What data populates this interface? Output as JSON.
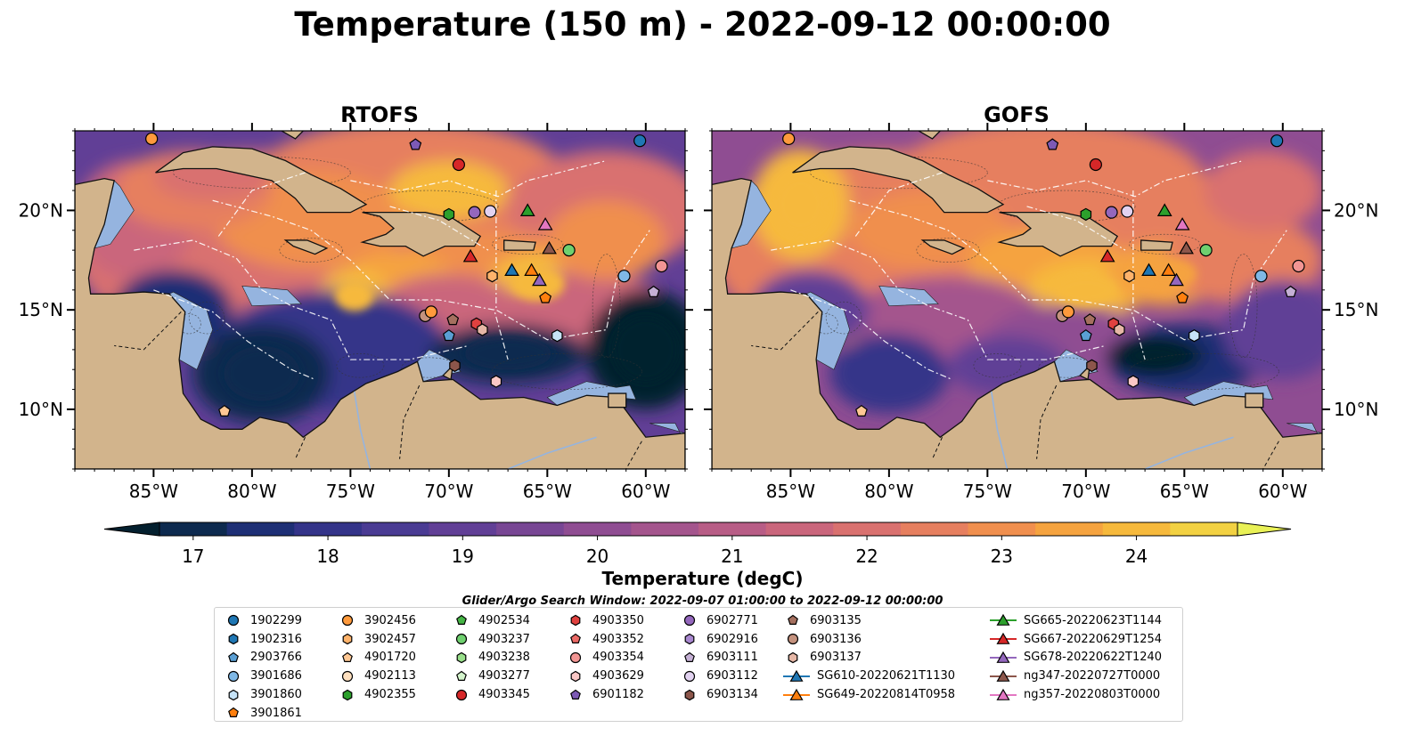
{
  "title": "Temperature (150 m) - 2022-09-12 00:00:00",
  "panels": [
    {
      "title": "RTOFS",
      "variant": "rtofs"
    },
    {
      "title": "GOFS",
      "variant": "gofs"
    }
  ],
  "map": {
    "lon_range": [
      -89,
      -58
    ],
    "lat_range": [
      7,
      24
    ],
    "lon_ticks": [
      -85,
      -80,
      -75,
      -70,
      -65,
      -60
    ],
    "lon_tick_labels": [
      "85°W",
      "80°W",
      "75°W",
      "70°W",
      "65°W",
      "60°W"
    ],
    "lat_ticks": [
      10,
      15,
      20
    ],
    "lat_tick_labels": [
      "10°N",
      "15°N",
      "20°N"
    ],
    "land_color": "#d2b48c",
    "shelf_color": "#95b4df",
    "eez_line_color": "#ffffff"
  },
  "colorbar": {
    "label": "Temperature (degC)",
    "min": 16.75,
    "max": 24.75,
    "step": 0.5,
    "ticks": [
      17,
      18,
      19,
      20,
      21,
      22,
      23,
      24
    ],
    "tick_labels": [
      "17",
      "18",
      "19",
      "20",
      "21",
      "22",
      "23",
      "24"
    ],
    "extend": "both",
    "colors": [
      "#04202f",
      "#0d2a4f",
      "#1e2f75",
      "#343489",
      "#4a3b93",
      "#613f96",
      "#784694",
      "#8f4d92",
      "#a4558d",
      "#b85d86",
      "#ca667c",
      "#d9716f",
      "#e67f5f",
      "#f08f4e",
      "#f5a33f",
      "#f6b93c",
      "#f2d142",
      "#e9f156"
    ]
  },
  "legend": {
    "title": "Glider/Argo Search Window: 2022-09-07 01:00:00 to 2022-09-12 00:00:00",
    "columns": [
      [
        {
          "label": "1902299",
          "marker": "circle",
          "color": "#1f77b4"
        },
        {
          "label": "1902316",
          "marker": "hexagon",
          "color": "#1f77b4"
        },
        {
          "label": "2903766",
          "marker": "pentagon",
          "color": "#5a9fd4"
        },
        {
          "label": "3901686",
          "marker": "circle",
          "color": "#7fb8e6"
        },
        {
          "label": "3901860",
          "marker": "hexagon",
          "color": "#c6e3f7"
        },
        {
          "label": "3901861",
          "marker": "pentagon",
          "color": "#ff7f0e"
        }
      ],
      [
        {
          "label": "3902456",
          "marker": "circle",
          "color": "#ff9a3c"
        },
        {
          "label": "3902457",
          "marker": "hexagon",
          "color": "#ffb36b"
        },
        {
          "label": "4901720",
          "marker": "pentagon",
          "color": "#ffc894"
        },
        {
          "label": "4902113",
          "marker": "circle",
          "color": "#ffe0bf"
        },
        {
          "label": "4902355",
          "marker": "hexagon",
          "color": "#2ca02c"
        }
      ],
      [
        {
          "label": "4902534",
          "marker": "pentagon",
          "color": "#45b545"
        },
        {
          "label": "4903237",
          "marker": "circle",
          "color": "#6fd06f"
        },
        {
          "label": "4903238",
          "marker": "hexagon",
          "color": "#98df8a"
        },
        {
          "label": "4903277",
          "marker": "pentagon",
          "color": "#d4f5cc"
        },
        {
          "label": "4903345",
          "marker": "circle",
          "color": "#d62728"
        }
      ],
      [
        {
          "label": "4903350",
          "marker": "hexagon",
          "color": "#e0413f"
        },
        {
          "label": "4903352",
          "marker": "pentagon",
          "color": "#ec6a66"
        },
        {
          "label": "4903354",
          "marker": "circle",
          "color": "#f29593"
        },
        {
          "label": "4903629",
          "marker": "hexagon",
          "color": "#fbc8c6"
        },
        {
          "label": "6901182",
          "marker": "pentagon",
          "color": "#7d5ab5"
        }
      ],
      [
        {
          "label": "6902771",
          "marker": "circle",
          "color": "#9467bd"
        },
        {
          "label": "6902916",
          "marker": "hexagon",
          "color": "#a988d0"
        },
        {
          "label": "6903111",
          "marker": "pentagon",
          "color": "#c5b0d5"
        },
        {
          "label": "6903112",
          "marker": "circle",
          "color": "#e2d2f0"
        },
        {
          "label": "6903134",
          "marker": "hexagon",
          "color": "#8c564b"
        }
      ],
      [
        {
          "label": "6903135",
          "marker": "pentagon",
          "color": "#a5705f"
        },
        {
          "label": "6903136",
          "marker": "circle",
          "color": "#c4927e"
        },
        {
          "label": "6903137",
          "marker": "hexagon",
          "color": "#e6b7a6"
        },
        {
          "label": "SG610-20220621T1130",
          "marker": "triangle",
          "color": "#1f77b4"
        },
        {
          "label": "SG649-20220814T0958",
          "marker": "triangle",
          "color": "#ff7f0e"
        }
      ],
      [
        {
          "label": "SG665-20220623T1144",
          "marker": "triangle",
          "color": "#2ca02c"
        },
        {
          "label": "SG667-20220629T1254",
          "marker": "triangle",
          "color": "#d62728"
        },
        {
          "label": "SG678-20220622T1240",
          "marker": "triangle",
          "color": "#9467bd"
        },
        {
          "label": "ng347-20220727T0000",
          "marker": "triangle",
          "color": "#8c564b"
        },
        {
          "label": "ng357-20220803T0000",
          "marker": "triangle",
          "color": "#e377c2"
        }
      ]
    ]
  },
  "chart_data": {
    "type": "heatmap",
    "title": "Temperature (150 m) - 2022-09-12 00:00:00",
    "subplots": [
      "RTOFS",
      "GOFS"
    ],
    "value_label": "Temperature (degC)",
    "xlim": [
      -89,
      -58
    ],
    "ylim": [
      7,
      24
    ],
    "observations": [
      {
        "id": "1902299",
        "lon": -60.3,
        "lat": 23.5
      },
      {
        "id": "3902456",
        "lon": -85.1,
        "lat": 23.6
      },
      {
        "id": "6901182",
        "lon": -71.7,
        "lat": 23.3
      },
      {
        "id": "4903345",
        "lon": -69.5,
        "lat": 22.3
      },
      {
        "id": "4902355",
        "lon": -70.0,
        "lat": 19.8
      },
      {
        "id": "6902771",
        "lon": -68.7,
        "lat": 19.9
      },
      {
        "id": "6903112",
        "lon": -67.9,
        "lat": 19.95
      },
      {
        "id": "SG665-20220623T1144",
        "lon": -66.0,
        "lat": 20.0
      },
      {
        "id": "ng357-20220803T0000",
        "lon": -65.1,
        "lat": 19.3
      },
      {
        "id": "4903237",
        "lon": -63.9,
        "lat": 18.0
      },
      {
        "id": "ng347-20220727T0000",
        "lon": -64.9,
        "lat": 18.1
      },
      {
        "id": "SG667-20220629T1254",
        "lon": -68.9,
        "lat": 17.7
      },
      {
        "id": "SG610-20220621T1130",
        "lon": -66.8,
        "lat": 17.0
      },
      {
        "id": "SG649-20220814T0958",
        "lon": -65.8,
        "lat": 17.0
      },
      {
        "id": "SG678-20220622T1240",
        "lon": -65.4,
        "lat": 16.5
      },
      {
        "id": "3902457",
        "lon": -67.8,
        "lat": 16.7
      },
      {
        "id": "3901861",
        "lon": -65.1,
        "lat": 15.6
      },
      {
        "id": "3901686",
        "lon": -61.1,
        "lat": 16.7
      },
      {
        "id": "4903354",
        "lon": -59.2,
        "lat": 17.2
      },
      {
        "id": "6903111",
        "lon": -59.6,
        "lat": 15.9
      },
      {
        "id": "6903136",
        "lon": -71.2,
        "lat": 14.7
      },
      {
        "id": "3902456",
        "lon": -70.9,
        "lat": 14.9
      },
      {
        "id": "6903135",
        "lon": -69.8,
        "lat": 14.5
      },
      {
        "id": "4903350",
        "lon": -68.6,
        "lat": 14.3
      },
      {
        "id": "6903137",
        "lon": -68.3,
        "lat": 14.0
      },
      {
        "id": "2903766",
        "lon": -70.0,
        "lat": 13.7
      },
      {
        "id": "3901860",
        "lon": -64.5,
        "lat": 13.7
      },
      {
        "id": "6903134",
        "lon": -69.7,
        "lat": 12.2
      },
      {
        "id": "4903629",
        "lon": -67.6,
        "lat": 11.4
      },
      {
        "id": "4901720",
        "lon": -81.4,
        "lat": 9.9
      }
    ]
  }
}
